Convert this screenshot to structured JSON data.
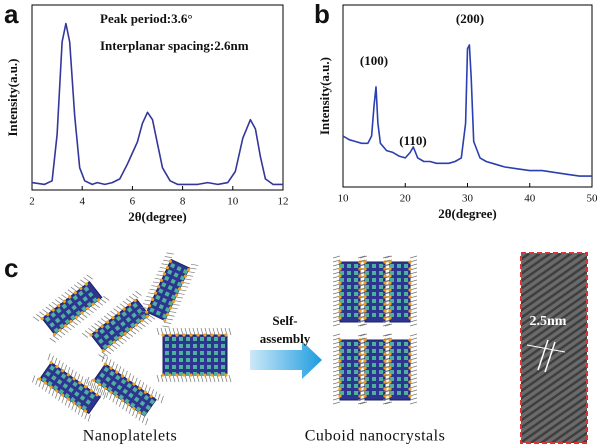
{
  "chart_data": [
    {
      "type": "line",
      "label": "a",
      "xlabel": "2θ(degree)",
      "ylabel": "Intensity(a.u.)",
      "annotations": [
        "Peak period:3.6°",
        "Interplanar spacing:2.6nm"
      ],
      "xlim": [
        2,
        12
      ],
      "xticks": [
        2,
        4,
        6,
        8,
        10,
        12
      ],
      "ylim": [
        0,
        100
      ],
      "color": "#34379a",
      "x": [
        2,
        2.5,
        2.8,
        3.0,
        3.2,
        3.35,
        3.5,
        3.7,
        3.9,
        4.1,
        4.4,
        4.6,
        4.9,
        5.2,
        5.5,
        5.8,
        6.0,
        6.2,
        6.4,
        6.6,
        6.8,
        7.0,
        7.2,
        7.5,
        7.8,
        8.2,
        8.6,
        9.0,
        9.4,
        9.8,
        10.1,
        10.4,
        10.7,
        10.9,
        11.1,
        11.3,
        11.6,
        12
      ],
      "values": [
        4,
        3,
        5,
        30,
        80,
        90,
        80,
        40,
        12,
        5,
        3,
        4,
        3,
        4,
        6,
        14,
        20,
        26,
        36,
        42,
        38,
        25,
        12,
        5,
        3,
        3,
        3,
        4,
        3,
        4,
        10,
        28,
        38,
        33,
        18,
        6,
        3,
        3
      ]
    },
    {
      "type": "line",
      "label": "b",
      "xlabel": "2θ(degree)",
      "ylabel": "Intensity(a.u.)",
      "annotations": [
        "(100)",
        "(110)",
        "(200)"
      ],
      "xlim": [
        10,
        50
      ],
      "xticks": [
        10,
        20,
        30,
        40,
        50
      ],
      "ylim": [
        0,
        100
      ],
      "color": "#2b3fb0",
      "x": [
        10,
        11,
        12,
        13,
        14,
        14.6,
        15,
        15.3,
        15.6,
        16,
        17,
        18,
        19,
        20,
        20.8,
        21.3,
        22,
        23,
        24,
        25,
        26,
        27,
        28,
        29,
        29.7,
        30,
        30.3,
        30.6,
        31,
        32,
        33,
        34,
        35,
        36,
        38,
        40,
        42,
        44,
        46,
        48,
        50
      ],
      "values": [
        28,
        26,
        25,
        24,
        24,
        28,
        45,
        55,
        35,
        24,
        20,
        19,
        17,
        16,
        19,
        22,
        16,
        14,
        14,
        13,
        13,
        13,
        14,
        16,
        35,
        76,
        78,
        60,
        25,
        16,
        14,
        13,
        12,
        11,
        10,
        9,
        9,
        8,
        7,
        6,
        6
      ]
    }
  ],
  "panel_c": {
    "label": "c",
    "arrow_label": [
      "Self-",
      "assembly"
    ],
    "left_caption": "Nanoplatelets",
    "middle_caption": "Cuboid nanocrystals",
    "scale_label": "2.5nm"
  }
}
